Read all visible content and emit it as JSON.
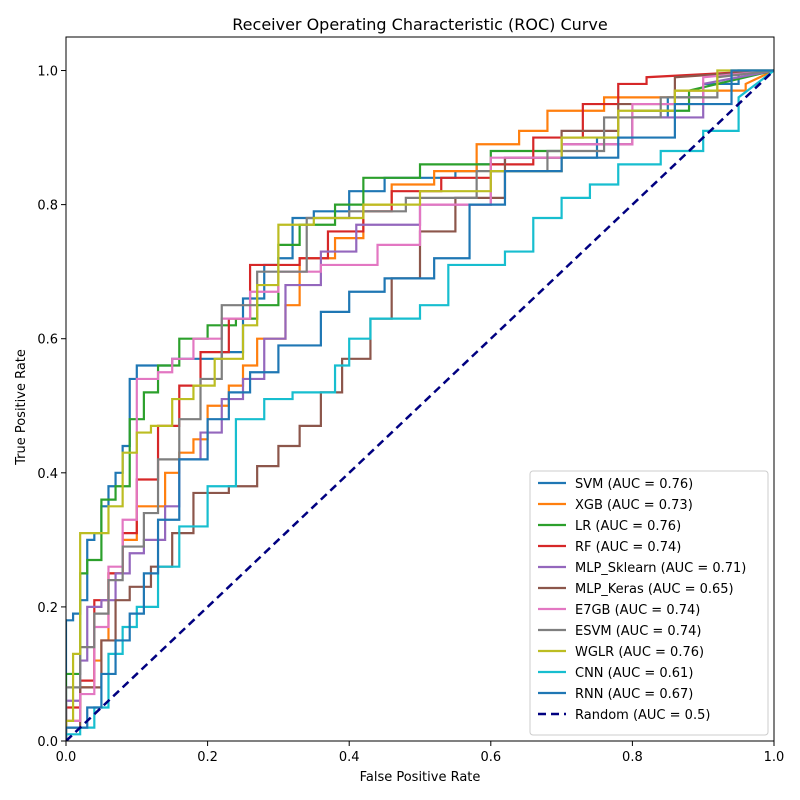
{
  "chart_data": {
    "type": "line",
    "title": "Receiver Operating Characteristic (ROC) Curve",
    "xlabel": "False Positive Rate",
    "ylabel": "True Positive Rate",
    "xlim": [
      0.0,
      1.0
    ],
    "ylim": [
      0.0,
      1.05
    ],
    "xticks": [
      "0.0",
      "0.2",
      "0.4",
      "0.6",
      "0.8",
      "1.0"
    ],
    "yticks": [
      "0.0",
      "0.2",
      "0.4",
      "0.6",
      "0.8",
      "1.0"
    ],
    "legend_position": "lower-right",
    "grid": false,
    "series": [
      {
        "name": "SVM (AUC = 0.76)",
        "color": "#1f77b4",
        "x": [
          0,
          0,
          0.01,
          0.01,
          0.02,
          0.02,
          0.03,
          0.03,
          0.04,
          0.04,
          0.05,
          0.05,
          0.06,
          0.06,
          0.07,
          0.07,
          0.08,
          0.08,
          0.09,
          0.09,
          0.1,
          0.1,
          0.12,
          0.12,
          0.13,
          0.13,
          0.15,
          0.15,
          0.17,
          0.17,
          0.18,
          0.18,
          0.2,
          0.2,
          0.22,
          0.22,
          0.25,
          0.25,
          0.28,
          0.28,
          0.3,
          0.3,
          0.32,
          0.32,
          0.35,
          0.35,
          0.4,
          0.4,
          0.45,
          0.45,
          0.55,
          0.55,
          0.58,
          0.58,
          0.62,
          0.62,
          0.7,
          0.7,
          0.75,
          0.75,
          0.8,
          0.8,
          0.85,
          0.85,
          0.9,
          0.9,
          0.95,
          0.95,
          1.0
        ],
        "y": [
          0,
          0.18,
          0.18,
          0.19,
          0.19,
          0.21,
          0.21,
          0.3,
          0.3,
          0.31,
          0.31,
          0.35,
          0.35,
          0.38,
          0.38,
          0.4,
          0.4,
          0.44,
          0.44,
          0.54,
          0.54,
          0.56,
          0.56,
          0.56,
          0.56,
          0.56,
          0.56,
          0.57,
          0.57,
          0.57,
          0.57,
          0.57,
          0.57,
          0.57,
          0.57,
          0.58,
          0.58,
          0.66,
          0.66,
          0.71,
          0.71,
          0.72,
          0.72,
          0.78,
          0.78,
          0.79,
          0.79,
          0.82,
          0.82,
          0.84,
          0.84,
          0.85,
          0.85,
          0.86,
          0.86,
          0.87,
          0.87,
          0.87,
          0.87,
          0.9,
          0.9,
          0.93,
          0.93,
          0.96,
          0.96,
          0.98,
          0.98,
          1.0,
          1.0
        ]
      },
      {
        "name": "XGB (AUC = 0.73)",
        "color": "#ff7f0e",
        "x": [
          0,
          0,
          0.02,
          0.02,
          0.04,
          0.04,
          0.05,
          0.05,
          0.06,
          0.06,
          0.08,
          0.08,
          0.1,
          0.1,
          0.14,
          0.14,
          0.16,
          0.16,
          0.18,
          0.18,
          0.2,
          0.2,
          0.23,
          0.23,
          0.25,
          0.25,
          0.27,
          0.27,
          0.31,
          0.31,
          0.33,
          0.33,
          0.38,
          0.38,
          0.42,
          0.42,
          0.46,
          0.46,
          0.52,
          0.52,
          0.58,
          0.58,
          0.64,
          0.64,
          0.68,
          0.68,
          0.76,
          0.76,
          0.86,
          0.86,
          0.96,
          0.96,
          1.0
        ],
        "y": [
          0,
          0.03,
          0.03,
          0.08,
          0.08,
          0.12,
          0.12,
          0.15,
          0.15,
          0.25,
          0.25,
          0.3,
          0.3,
          0.35,
          0.35,
          0.4,
          0.4,
          0.43,
          0.43,
          0.45,
          0.45,
          0.5,
          0.5,
          0.53,
          0.53,
          0.56,
          0.56,
          0.6,
          0.6,
          0.65,
          0.65,
          0.72,
          0.72,
          0.75,
          0.75,
          0.8,
          0.8,
          0.83,
          0.83,
          0.85,
          0.85,
          0.89,
          0.89,
          0.91,
          0.91,
          0.94,
          0.94,
          0.96,
          0.96,
          0.97,
          0.97,
          0.98,
          1.0
        ]
      },
      {
        "name": "LR (AUC = 0.76)",
        "color": "#2ca02c",
        "x": [
          0,
          0,
          0.02,
          0.02,
          0.03,
          0.03,
          0.05,
          0.05,
          0.07,
          0.07,
          0.09,
          0.09,
          0.11,
          0.11,
          0.13,
          0.13,
          0.16,
          0.16,
          0.2,
          0.2,
          0.24,
          0.24,
          0.27,
          0.27,
          0.3,
          0.3,
          0.33,
          0.33,
          0.38,
          0.38,
          0.42,
          0.42,
          0.5,
          0.5,
          0.6,
          0.6,
          0.7,
          0.7,
          0.8,
          0.8,
          0.88,
          0.88,
          1.0
        ],
        "y": [
          0,
          0.1,
          0.1,
          0.25,
          0.25,
          0.27,
          0.27,
          0.36,
          0.36,
          0.38,
          0.38,
          0.48,
          0.48,
          0.52,
          0.52,
          0.56,
          0.56,
          0.6,
          0.6,
          0.62,
          0.62,
          0.63,
          0.63,
          0.65,
          0.65,
          0.74,
          0.74,
          0.77,
          0.77,
          0.8,
          0.8,
          0.84,
          0.84,
          0.86,
          0.86,
          0.88,
          0.88,
          0.89,
          0.89,
          0.94,
          0.94,
          0.97,
          1.0
        ]
      },
      {
        "name": "RF (AUC = 0.74)",
        "color": "#d62728",
        "x": [
          0,
          0,
          0.02,
          0.02,
          0.04,
          0.04,
          0.06,
          0.06,
          0.08,
          0.08,
          0.1,
          0.1,
          0.13,
          0.13,
          0.16,
          0.16,
          0.19,
          0.19,
          0.23,
          0.23,
          0.26,
          0.26,
          0.33,
          0.33,
          0.37,
          0.37,
          0.42,
          0.42,
          0.46,
          0.46,
          0.53,
          0.53,
          0.6,
          0.6,
          0.66,
          0.66,
          0.73,
          0.73,
          0.78,
          0.78,
          0.82,
          0.82,
          1.0
        ],
        "y": [
          0,
          0.05,
          0.05,
          0.09,
          0.09,
          0.21,
          0.21,
          0.25,
          0.25,
          0.31,
          0.31,
          0.39,
          0.39,
          0.47,
          0.47,
          0.53,
          0.53,
          0.58,
          0.58,
          0.63,
          0.63,
          0.71,
          0.71,
          0.72,
          0.72,
          0.76,
          0.76,
          0.79,
          0.79,
          0.82,
          0.82,
          0.84,
          0.84,
          0.86,
          0.86,
          0.9,
          0.9,
          0.95,
          0.95,
          0.98,
          0.98,
          0.99,
          1.0
        ]
      },
      {
        "name": "MLP_Sklearn (AUC = 0.71)",
        "color": "#9467bd",
        "x": [
          0,
          0,
          0.02,
          0.02,
          0.03,
          0.03,
          0.05,
          0.05,
          0.07,
          0.07,
          0.09,
          0.09,
          0.11,
          0.11,
          0.14,
          0.14,
          0.16,
          0.16,
          0.19,
          0.19,
          0.22,
          0.22,
          0.25,
          0.25,
          0.28,
          0.28,
          0.31,
          0.31,
          0.36,
          0.36,
          0.41,
          0.41,
          0.5,
          0.5,
          0.6,
          0.6,
          0.7,
          0.7,
          0.8,
          0.8,
          0.9,
          0.9,
          1.0
        ],
        "y": [
          0,
          0.06,
          0.06,
          0.12,
          0.12,
          0.2,
          0.2,
          0.21,
          0.21,
          0.25,
          0.25,
          0.28,
          0.28,
          0.3,
          0.3,
          0.35,
          0.35,
          0.42,
          0.42,
          0.46,
          0.46,
          0.51,
          0.51,
          0.54,
          0.54,
          0.6,
          0.6,
          0.68,
          0.68,
          0.73,
          0.73,
          0.77,
          0.77,
          0.8,
          0.8,
          0.85,
          0.85,
          0.89,
          0.89,
          0.93,
          0.93,
          0.98,
          1.0
        ]
      },
      {
        "name": "MLP_Keras (AUC = 0.65)",
        "color": "#8c564b",
        "x": [
          0,
          0,
          0.02,
          0.02,
          0.05,
          0.05,
          0.07,
          0.07,
          0.09,
          0.09,
          0.12,
          0.12,
          0.15,
          0.15,
          0.18,
          0.18,
          0.23,
          0.23,
          0.27,
          0.27,
          0.3,
          0.3,
          0.33,
          0.33,
          0.36,
          0.36,
          0.39,
          0.39,
          0.43,
          0.43,
          0.46,
          0.46,
          0.5,
          0.5,
          0.55,
          0.55,
          0.62,
          0.62,
          0.7,
          0.7,
          0.78,
          0.78,
          0.86,
          0.86,
          1.0
        ],
        "y": [
          0,
          0.02,
          0.02,
          0.08,
          0.08,
          0.15,
          0.15,
          0.21,
          0.21,
          0.23,
          0.23,
          0.26,
          0.26,
          0.31,
          0.31,
          0.37,
          0.37,
          0.38,
          0.38,
          0.41,
          0.41,
          0.44,
          0.44,
          0.47,
          0.47,
          0.52,
          0.52,
          0.57,
          0.57,
          0.63,
          0.63,
          0.69,
          0.69,
          0.76,
          0.76,
          0.81,
          0.81,
          0.87,
          0.87,
          0.91,
          0.91,
          0.95,
          0.95,
          0.99,
          1.0
        ]
      },
      {
        "name": "E7GB (AUC = 0.74)",
        "color": "#e377c2",
        "x": [
          0,
          0,
          0.02,
          0.02,
          0.04,
          0.04,
          0.06,
          0.06,
          0.08,
          0.08,
          0.1,
          0.1,
          0.13,
          0.13,
          0.15,
          0.15,
          0.18,
          0.18,
          0.22,
          0.22,
          0.26,
          0.26,
          0.3,
          0.3,
          0.36,
          0.36,
          0.44,
          0.44,
          0.5,
          0.5,
          0.6,
          0.6,
          0.7,
          0.7,
          0.8,
          0.8,
          0.9,
          0.9,
          1.0
        ],
        "y": [
          0,
          0.03,
          0.03,
          0.07,
          0.07,
          0.17,
          0.17,
          0.26,
          0.26,
          0.33,
          0.33,
          0.54,
          0.54,
          0.55,
          0.55,
          0.57,
          0.57,
          0.6,
          0.6,
          0.63,
          0.63,
          0.67,
          0.67,
          0.7,
          0.7,
          0.71,
          0.71,
          0.74,
          0.74,
          0.8,
          0.8,
          0.87,
          0.87,
          0.89,
          0.89,
          0.95,
          0.95,
          0.99,
          1.0
        ]
      },
      {
        "name": "ESVM (AUC = 0.74)",
        "color": "#7f7f7f",
        "x": [
          0,
          0,
          0.02,
          0.02,
          0.04,
          0.04,
          0.06,
          0.06,
          0.08,
          0.08,
          0.11,
          0.11,
          0.13,
          0.13,
          0.16,
          0.16,
          0.19,
          0.19,
          0.22,
          0.22,
          0.27,
          0.27,
          0.34,
          0.34,
          0.4,
          0.4,
          0.48,
          0.48,
          0.58,
          0.58,
          0.68,
          0.68,
          0.76,
          0.76,
          0.84,
          0.84,
          0.92,
          0.92,
          1.0
        ],
        "y": [
          0,
          0.08,
          0.08,
          0.14,
          0.14,
          0.19,
          0.19,
          0.24,
          0.24,
          0.29,
          0.29,
          0.34,
          0.34,
          0.42,
          0.42,
          0.48,
          0.48,
          0.54,
          0.54,
          0.65,
          0.65,
          0.7,
          0.7,
          0.78,
          0.78,
          0.79,
          0.79,
          0.81,
          0.81,
          0.85,
          0.85,
          0.88,
          0.88,
          0.93,
          0.93,
          0.96,
          0.96,
          0.99,
          1.0
        ]
      },
      {
        "name": "WGLR (AUC = 0.76)",
        "color": "#bcbd22",
        "x": [
          0,
          0,
          0.01,
          0.01,
          0.02,
          0.02,
          0.06,
          0.06,
          0.08,
          0.08,
          0.1,
          0.1,
          0.12,
          0.12,
          0.15,
          0.15,
          0.18,
          0.18,
          0.21,
          0.21,
          0.25,
          0.25,
          0.27,
          0.27,
          0.3,
          0.3,
          0.35,
          0.35,
          0.42,
          0.42,
          0.5,
          0.5,
          0.6,
          0.6,
          0.7,
          0.7,
          0.78,
          0.78,
          0.86,
          0.86,
          0.92,
          0.92,
          1.0
        ],
        "y": [
          0,
          0.03,
          0.03,
          0.13,
          0.13,
          0.31,
          0.31,
          0.35,
          0.35,
          0.43,
          0.43,
          0.46,
          0.46,
          0.47,
          0.47,
          0.51,
          0.51,
          0.53,
          0.53,
          0.57,
          0.57,
          0.62,
          0.62,
          0.68,
          0.68,
          0.77,
          0.77,
          0.78,
          0.78,
          0.8,
          0.8,
          0.82,
          0.82,
          0.85,
          0.85,
          0.9,
          0.9,
          0.94,
          0.94,
          0.97,
          0.97,
          1.0,
          1.0
        ]
      },
      {
        "name": "CNN (AUC = 0.61)",
        "color": "#17becf",
        "x": [
          0,
          0,
          0.02,
          0.02,
          0.04,
          0.04,
          0.06,
          0.06,
          0.08,
          0.08,
          0.1,
          0.1,
          0.13,
          0.13,
          0.16,
          0.16,
          0.2,
          0.2,
          0.24,
          0.24,
          0.28,
          0.28,
          0.32,
          0.32,
          0.38,
          0.38,
          0.4,
          0.4,
          0.43,
          0.43,
          0.5,
          0.5,
          0.54,
          0.54,
          0.62,
          0.62,
          0.66,
          0.66,
          0.7,
          0.7,
          0.74,
          0.74,
          0.78,
          0.78,
          0.84,
          0.84,
          0.9,
          0.9,
          0.95,
          0.95,
          1.0
        ],
        "y": [
          0,
          0.01,
          0.01,
          0.02,
          0.02,
          0.05,
          0.05,
          0.13,
          0.13,
          0.17,
          0.17,
          0.2,
          0.2,
          0.26,
          0.26,
          0.32,
          0.32,
          0.38,
          0.38,
          0.48,
          0.48,
          0.51,
          0.51,
          0.52,
          0.52,
          0.56,
          0.56,
          0.6,
          0.6,
          0.63,
          0.63,
          0.65,
          0.65,
          0.71,
          0.71,
          0.73,
          0.73,
          0.78,
          0.78,
          0.81,
          0.81,
          0.83,
          0.83,
          0.86,
          0.86,
          0.88,
          0.88,
          0.91,
          0.91,
          0.96,
          1.0
        ]
      },
      {
        "name": "RNN (AUC = 0.67)",
        "color": "#1f77b4",
        "x": [
          0,
          0,
          0.03,
          0.03,
          0.05,
          0.05,
          0.07,
          0.07,
          0.09,
          0.09,
          0.11,
          0.11,
          0.13,
          0.13,
          0.16,
          0.16,
          0.2,
          0.2,
          0.23,
          0.23,
          0.26,
          0.26,
          0.3,
          0.3,
          0.36,
          0.36,
          0.4,
          0.4,
          0.45,
          0.45,
          0.52,
          0.52,
          0.57,
          0.57,
          0.62,
          0.62,
          0.7,
          0.7,
          0.78,
          0.78,
          0.86,
          0.86,
          0.94,
          0.94,
          1.0
        ],
        "y": [
          0,
          0.02,
          0.02,
          0.05,
          0.05,
          0.1,
          0.1,
          0.15,
          0.15,
          0.19,
          0.19,
          0.25,
          0.25,
          0.33,
          0.33,
          0.42,
          0.42,
          0.48,
          0.48,
          0.52,
          0.52,
          0.55,
          0.55,
          0.59,
          0.59,
          0.64,
          0.64,
          0.67,
          0.67,
          0.69,
          0.69,
          0.72,
          0.72,
          0.8,
          0.8,
          0.85,
          0.85,
          0.87,
          0.87,
          0.9,
          0.9,
          0.95,
          0.95,
          1.0,
          1.0
        ]
      },
      {
        "name": "Random (AUC = 0.5)",
        "color": "#000080",
        "dashed": true,
        "x": [
          0,
          1
        ],
        "y": [
          0,
          1
        ]
      }
    ]
  }
}
